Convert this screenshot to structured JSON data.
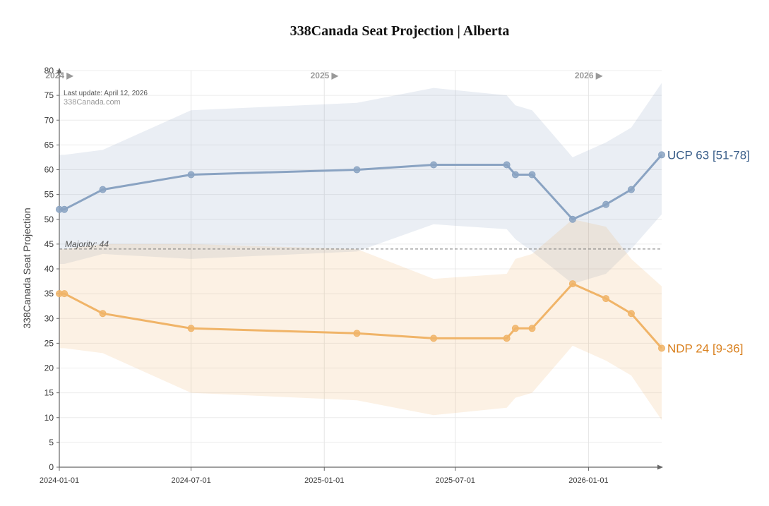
{
  "chart_data": {
    "type": "line",
    "title": "338Canada Seat Projection | Alberta",
    "ylabel": "338Canada Seat Projection",
    "xlabel": "",
    "ylim": [
      0,
      80
    ],
    "yticks": [
      0,
      5,
      10,
      15,
      20,
      25,
      30,
      35,
      40,
      45,
      50,
      55,
      60,
      65,
      70,
      75,
      80
    ],
    "x_range": [
      "2024-01-01",
      "2026-04-12"
    ],
    "x_ticks": [
      "2024-01-01",
      "2024-07-01",
      "2025-01-01",
      "2025-07-01",
      "2026-01-01"
    ],
    "year_markers": [
      {
        "date": "2024-01-01",
        "label": "2024"
      },
      {
        "date": "2025-01-01",
        "label": "2025"
      },
      {
        "date": "2026-01-01",
        "label": "2026"
      }
    ],
    "last_update": "Last update: April 12, 2026",
    "source": "338Canada.com",
    "majority": {
      "value": 44,
      "label": "Majority: 44"
    },
    "grid": true,
    "series": [
      {
        "name": "UCP",
        "color": "#8aa3c2",
        "label_color": "#3b5f8a",
        "end_label": "UCP 63 [51-78]",
        "dates": [
          "2024-01-01",
          "2024-01-08",
          "2024-03-01",
          "2024-07-01",
          "2025-02-15",
          "2025-06-01",
          "2025-09-10",
          "2025-09-22",
          "2025-10-15",
          "2025-12-10",
          "2026-01-25",
          "2026-03-01",
          "2026-04-12"
        ],
        "values": [
          52,
          52,
          56,
          59,
          60,
          61,
          61,
          59,
          59,
          50,
          53,
          56,
          63
        ],
        "low": [
          41,
          41,
          43,
          42,
          43.5,
          49,
          48,
          46,
          43.5,
          37,
          39,
          44,
          51
        ],
        "high": [
          63,
          63,
          64,
          72,
          73.5,
          76.5,
          75,
          73,
          72,
          62.5,
          65.5,
          68.5,
          77.5
        ]
      },
      {
        "name": "NDP",
        "color": "#f0b468",
        "label_color": "#d9801e",
        "end_label": "NDP 24 [9-36]",
        "dates": [
          "2024-01-01",
          "2024-01-08",
          "2024-03-01",
          "2024-07-01",
          "2025-02-15",
          "2025-06-01",
          "2025-09-10",
          "2025-09-22",
          "2025-10-15",
          "2025-12-10",
          "2026-01-25",
          "2026-03-01",
          "2026-04-12"
        ],
        "values": [
          35,
          35,
          31,
          28,
          27,
          26,
          26,
          28,
          28,
          37,
          34,
          31,
          24
        ],
        "low": [
          24,
          24,
          23,
          15,
          13.5,
          10.5,
          12,
          14,
          15,
          24.5,
          21.5,
          18.5,
          9.5
        ],
        "high": [
          44,
          44,
          45,
          45,
          44,
          38,
          39,
          42,
          43,
          50,
          48.5,
          42,
          36.5
        ]
      }
    ]
  }
}
